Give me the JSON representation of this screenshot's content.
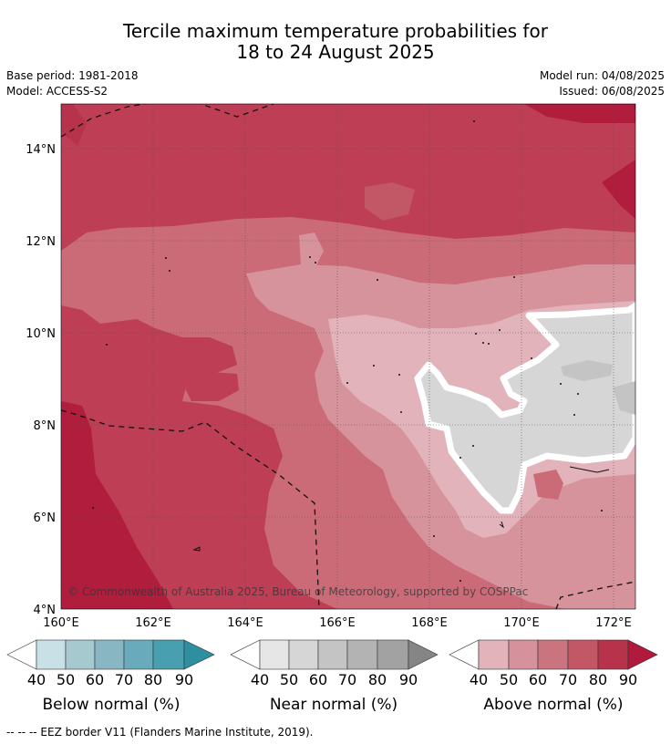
{
  "title": {
    "line1": "Tercile maximum temperature probabilities for",
    "line2": "18 to 24 August 2025"
  },
  "meta": {
    "base_period": "Base period: 1981-2018",
    "model": "Model: ACCESS-S2",
    "model_run": "Model run: 04/08/2025",
    "issued": "Issued: 06/08/2025"
  },
  "map": {
    "lat_ticks": [
      "14°N",
      "12°N",
      "10°N",
      "8°N",
      "6°N",
      "4°N"
    ],
    "lon_ticks": [
      "160°E",
      "162°E",
      "164°E",
      "166°E",
      "168°E",
      "170°E",
      "172°E"
    ],
    "copyright": "© Commonwealth of Australia 2025, Bureau of Meteorology, supported by COSPPac"
  },
  "colorbars": [
    {
      "label": "Below normal (%)",
      "ticks": [
        "40",
        "50",
        "60",
        "70",
        "80",
        "90"
      ],
      "colors": [
        "#ffffff",
        "#c9e0e6",
        "#a6c8cf",
        "#88b7c3",
        "#6aabbb",
        "#489fb0",
        "#2e8fa1"
      ]
    },
    {
      "label": "Near normal (%)",
      "ticks": [
        "40",
        "50",
        "60",
        "70",
        "80",
        "90"
      ],
      "colors": [
        "#ffffff",
        "#e6e6e6",
        "#d6d6d6",
        "#c4c4c4",
        "#b3b3b3",
        "#a2a2a2",
        "#858585"
      ]
    },
    {
      "label": "Above normal (%)",
      "ticks": [
        "40",
        "50",
        "60",
        "70",
        "80",
        "90"
      ],
      "colors": [
        "#ffffff",
        "#e2b3ba",
        "#d6929c",
        "#ca747f",
        "#c25765",
        "#b7334b",
        "#b01a3c"
      ]
    }
  ],
  "footer": {
    "legend_line": "--  --  -- EEZ border V11 (Flanders Marine Institute, 2019)."
  }
}
